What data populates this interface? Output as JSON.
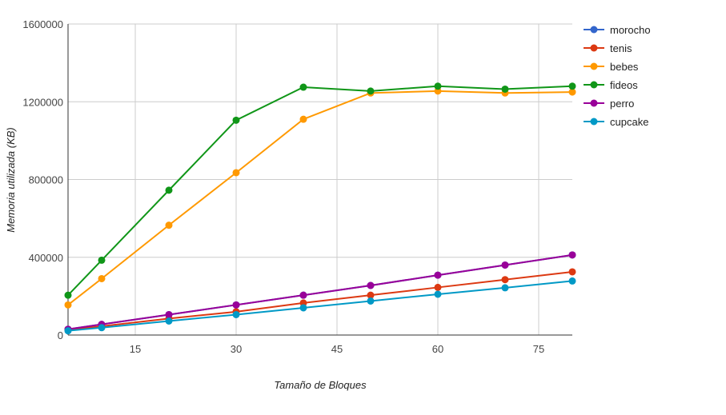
{
  "chart_data": {
    "type": "line",
    "title": "",
    "xlabel": "Tamaño de Bloques",
    "ylabel": "Memoria utilizada (KB)",
    "x": [
      5,
      10,
      20,
      30,
      40,
      50,
      60,
      70,
      80
    ],
    "xlim": [
      5,
      80
    ],
    "ylim": [
      0,
      1600000
    ],
    "x_ticks": [
      15,
      30,
      45,
      60,
      75
    ],
    "y_ticks": [
      0,
      400000,
      800000,
      1200000,
      1600000
    ],
    "grid": true,
    "legend_position": "right",
    "series": [
      {
        "name": "morocho",
        "color": "#3366cc",
        "values": [
          30000,
          55000,
          105000,
          155000,
          205000,
          255000,
          308000,
          360000,
          412000
        ]
      },
      {
        "name": "tenis",
        "color": "#dc3912",
        "values": [
          28000,
          45000,
          85000,
          120000,
          165000,
          205000,
          245000,
          285000,
          325000
        ]
      },
      {
        "name": "bebes",
        "color": "#ff9900",
        "values": [
          155000,
          290000,
          565000,
          835000,
          1110000,
          1245000,
          1255000,
          1245000,
          1250000
        ]
      },
      {
        "name": "fideos",
        "color": "#109618",
        "values": [
          205000,
          385000,
          745000,
          1105000,
          1275000,
          1255000,
          1280000,
          1265000,
          1280000
        ]
      },
      {
        "name": "perro",
        "color": "#990099",
        "values": [
          30000,
          55000,
          105000,
          155000,
          205000,
          255000,
          308000,
          360000,
          412000
        ]
      },
      {
        "name": "cupcake",
        "color": "#0099c6",
        "values": [
          22000,
          38000,
          72000,
          105000,
          140000,
          175000,
          210000,
          243000,
          278000
        ]
      }
    ]
  }
}
